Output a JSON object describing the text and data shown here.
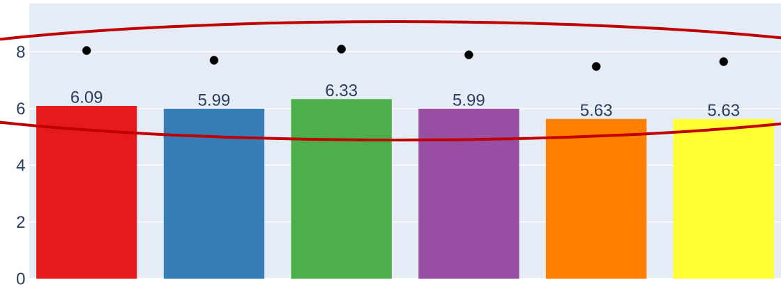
{
  "chart_data": {
    "type": "bar",
    "categories": [
      null,
      null,
      null,
      null,
      null,
      null
    ],
    "series": [
      {
        "type": "bar",
        "values": [
          6.09,
          5.99,
          6.33,
          5.99,
          5.63,
          5.63
        ],
        "colors": [
          "#e41a1c",
          "#377eb8",
          "#4daf4a",
          "#984ea3",
          "#ff7f00",
          "#ffff33"
        ],
        "value_labels": [
          "6.09",
          "5.99",
          "6.33",
          "5.99",
          "5.63",
          "5.63"
        ]
      },
      {
        "type": "scatter",
        "values": [
          8.04,
          7.7,
          8.09,
          7.89,
          7.48,
          7.65
        ],
        "color": "#000000",
        "marker": "circle"
      }
    ],
    "ylim": [
      0,
      9.7
    ],
    "yticks": [
      0,
      2,
      4,
      6,
      8
    ],
    "grid": "y",
    "tick_labels": "y"
  }
}
